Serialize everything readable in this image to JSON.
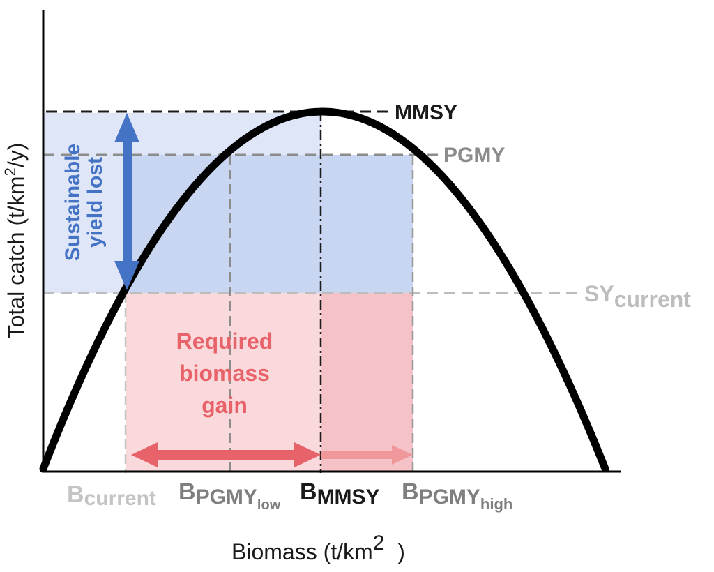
{
  "labels": {
    "mmsy": "MMSY",
    "pgmy": "PGMY",
    "sy_base": "SY",
    "sy_sub": "current",
    "yield_lost_line1": "Sustainable",
    "yield_lost_line2": "yield lost",
    "gain_line1": "Required",
    "gain_line2": "biomass",
    "gain_line3": "gain",
    "b_letter": "B",
    "b_current_sub": "current",
    "b_pgmy_low_main": "PGMY",
    "b_pgmy_low_sub": "low",
    "b_mmsy_main": "MMSY",
    "b_pgmy_high_main": "PGMY",
    "b_pgmy_high_sub": "high"
  },
  "axes": {
    "y_title_main": "Total catch (t/km",
    "y_title_sup": "2",
    "y_title_end": "/y)",
    "x_title_main": "Biomass (t/km",
    "x_title_sup": "2",
    "x_title_end": " )"
  },
  "colors": {
    "curve": "#000000",
    "yield_lost": "#4472c4",
    "yield_region": "#c9d6f1",
    "gain": "#e8626a",
    "gain_region": "#f7c9cc",
    "mmsy_line": "#1a1a1a",
    "pgmy_line": "#8c8c8c",
    "sy_line": "#bdbdbd"
  }
}
